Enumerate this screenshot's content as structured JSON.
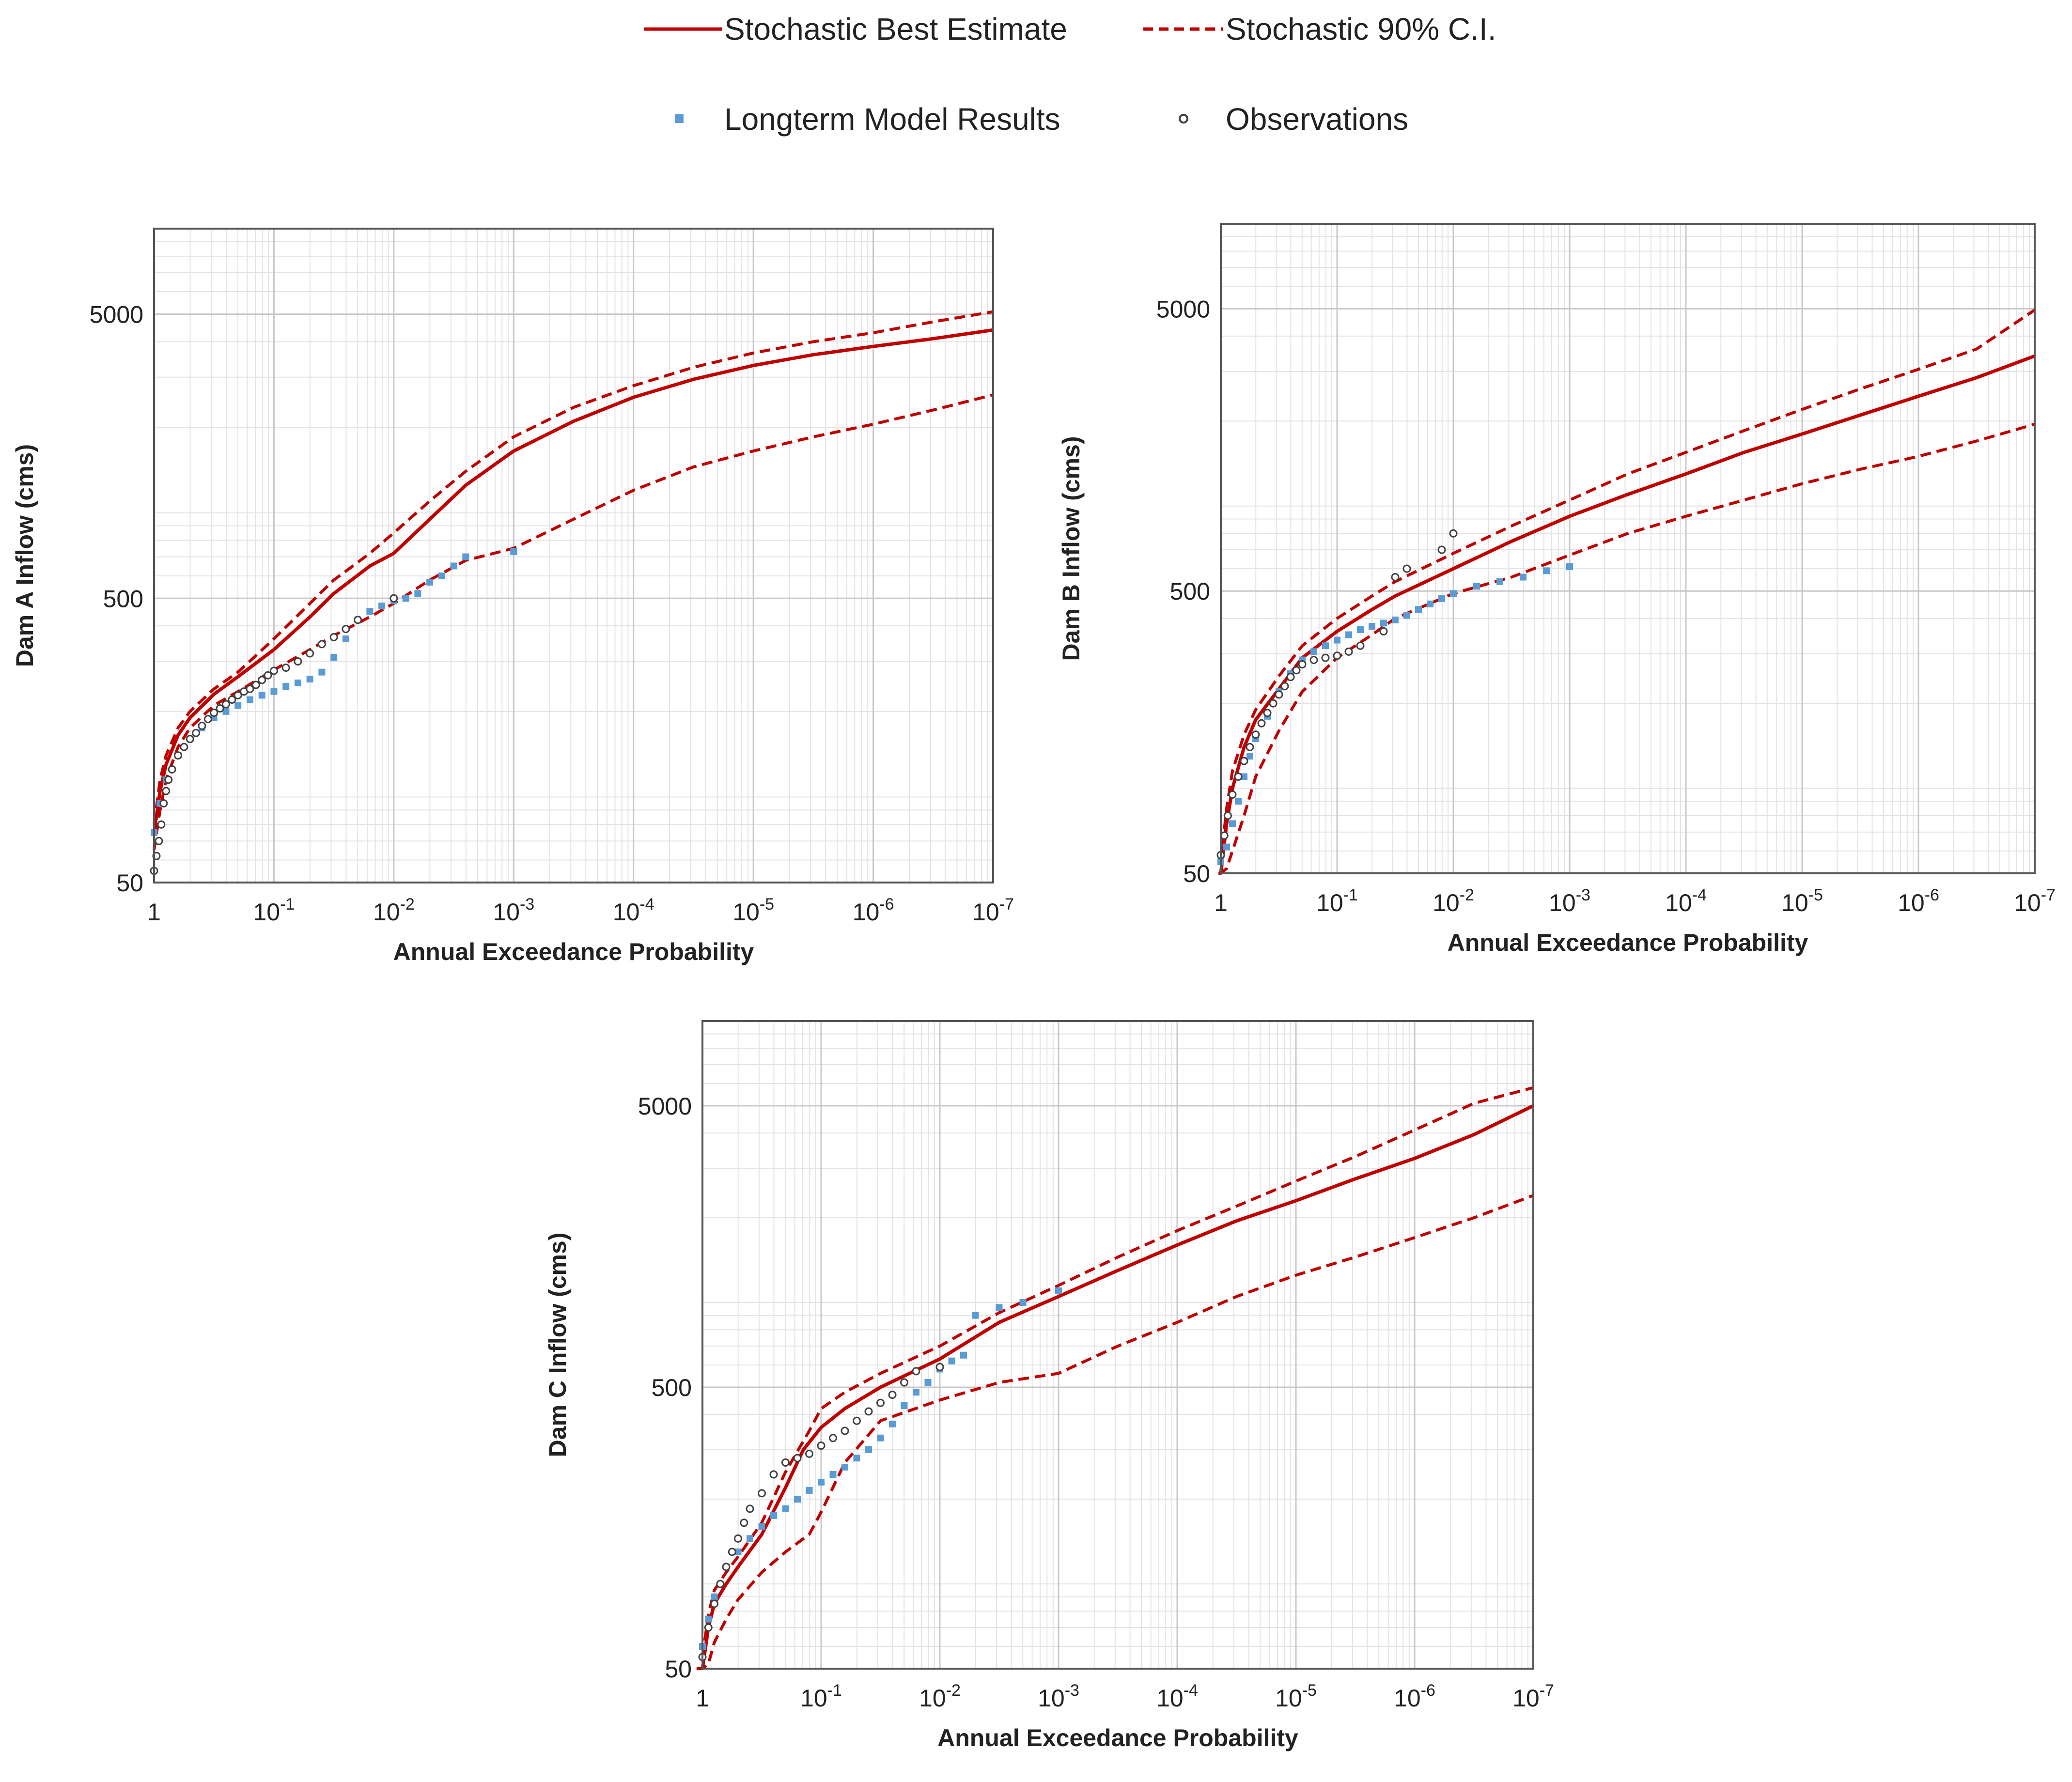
{
  "legend": [
    {
      "key": "best",
      "label": "Stochastic Best Estimate",
      "style": "solid",
      "color": "#c00000"
    },
    {
      "key": "ci",
      "label": "Stochastic 90% C.I.",
      "style": "dashed",
      "color": "#c00000"
    },
    {
      "key": "model",
      "label": "Longterm Model Results",
      "style": "square",
      "color": "#5b9bd5"
    },
    {
      "key": "obs",
      "label": "Observations",
      "style": "circle",
      "color": "#404040"
    }
  ],
  "chart_data": [
    {
      "id": "a",
      "type": "line",
      "xlabel": "Annual Exceedance Probability",
      "ylabel": "Dam A Inflow (cms)",
      "x_scale": "log-reversed",
      "xlim_exponent": [
        0,
        -7
      ],
      "x_ticks": [
        {
          "base": "1",
          "exp": ""
        },
        {
          "base": "10",
          "exp": "-1"
        },
        {
          "base": "10",
          "exp": "-2"
        },
        {
          "base": "10",
          "exp": "-3"
        },
        {
          "base": "10",
          "exp": "-4"
        },
        {
          "base": "10",
          "exp": "-5"
        },
        {
          "base": "10",
          "exp": "-6"
        },
        {
          "base": "10",
          "exp": "-7"
        }
      ],
      "y_scale": "log",
      "ylim": [
        50,
        10000
      ],
      "y_ticks": [
        {
          "value": 50,
          "label": "50"
        },
        {
          "value": 500,
          "label": "500"
        },
        {
          "value": 5000,
          "label": "5000"
        }
      ],
      "series": [
        {
          "name": "Stochastic Best Estimate",
          "style": "solid",
          "x": [
            0,
            -0.05,
            -0.1,
            -0.2,
            -0.3,
            -0.5,
            -0.7,
            -1,
            -1.3,
            -1.5,
            -1.8,
            -2,
            -2.3,
            -2.6,
            -3,
            -3.5,
            -4,
            -4.5,
            -5,
            -5.5,
            -6,
            -6.5,
            -7
          ],
          "y": [
            75,
            105,
            130,
            165,
            190,
            230,
            265,
            330,
            430,
            520,
            650,
            720,
            950,
            1250,
            1650,
            2100,
            2550,
            2950,
            3300,
            3600,
            3850,
            4100,
            4400
          ]
        },
        {
          "name": "Stochastic 90% C.I. upper",
          "style": "dashed",
          "x": [
            0,
            -0.05,
            -0.1,
            -0.2,
            -0.3,
            -0.5,
            -0.7,
            -1,
            -1.3,
            -1.5,
            -1.8,
            -2,
            -2.3,
            -2.6,
            -3,
            -3.5,
            -4,
            -4.5,
            -5,
            -5.5,
            -6,
            -6.5,
            -7
          ],
          "y": [
            80,
            115,
            140,
            175,
            200,
            240,
            275,
            360,
            480,
            580,
            720,
            850,
            1100,
            1400,
            1850,
            2350,
            2800,
            3250,
            3650,
            4000,
            4300,
            4700,
            5100
          ]
        },
        {
          "name": "Stochastic 90% C.I. lower",
          "style": "dashed",
          "x": [
            0,
            -0.05,
            -0.1,
            -0.2,
            -0.3,
            -0.5,
            -0.7,
            -1,
            -1.3,
            -1.5,
            -1.8,
            -2,
            -2.3,
            -2.6,
            -3,
            -3.5,
            -4,
            -4.5,
            -5,
            -5.5,
            -6,
            -6.5,
            -7
          ],
          "y": [
            65,
            90,
            115,
            150,
            175,
            210,
            235,
            280,
            330,
            370,
            430,
            480,
            580,
            680,
            750,
            950,
            1200,
            1450,
            1650,
            1850,
            2050,
            2300,
            2600
          ]
        },
        {
          "name": "Longterm Model Results",
          "style": "square",
          "x": [
            0,
            -0.05,
            -0.1,
            -0.2,
            -0.3,
            -0.4,
            -0.5,
            -0.6,
            -0.7,
            -0.8,
            -0.9,
            -1,
            -1.1,
            -1.2,
            -1.3,
            -1.4,
            -1.5,
            -1.6,
            -1.7,
            -1.8,
            -1.9,
            -2,
            -2.1,
            -2.2,
            -2.3,
            -2.4,
            -2.5,
            -2.6,
            -3
          ],
          "y": [
            75,
            95,
            115,
            140,
            160,
            175,
            190,
            200,
            210,
            220,
            228,
            235,
            245,
            252,
            260,
            275,
            310,
            360,
            420,
            450,
            470,
            490,
            500,
            520,
            570,
            600,
            650,
            700,
            730
          ]
        },
        {
          "name": "Observations",
          "style": "circle",
          "x": [
            0,
            -0.02,
            -0.04,
            -0.06,
            -0.08,
            -0.1,
            -0.12,
            -0.15,
            -0.2,
            -0.25,
            -0.3,
            -0.35,
            -0.4,
            -0.45,
            -0.5,
            -0.55,
            -0.6,
            -0.65,
            -0.7,
            -0.75,
            -0.8,
            -0.85,
            -0.9,
            -0.95,
            -1,
            -1.1,
            -1.2,
            -1.3,
            -1.4,
            -1.5,
            -1.6,
            -1.7,
            -2
          ],
          "y": [
            55,
            62,
            70,
            80,
            95,
            105,
            115,
            125,
            140,
            150,
            160,
            168,
            178,
            188,
            198,
            205,
            212,
            220,
            228,
            235,
            240,
            248,
            258,
            268,
            278,
            285,
            300,
            320,
            345,
            365,
            390,
            420,
            500
          ]
        }
      ]
    },
    {
      "id": "b",
      "type": "line",
      "xlabel": "Annual Exceedance Probability",
      "ylabel": "Dam B Inflow (cms)",
      "x_scale": "log-reversed",
      "xlim_exponent": [
        0,
        -7
      ],
      "x_ticks": [
        {
          "base": "1",
          "exp": ""
        },
        {
          "base": "10",
          "exp": "-1"
        },
        {
          "base": "10",
          "exp": "-2"
        },
        {
          "base": "10",
          "exp": "-3"
        },
        {
          "base": "10",
          "exp": "-4"
        },
        {
          "base": "10",
          "exp": "-5"
        },
        {
          "base": "10",
          "exp": "-6"
        },
        {
          "base": "10",
          "exp": "-7"
        }
      ],
      "y_scale": "log",
      "ylim": [
        50,
        10000
      ],
      "y_ticks": [
        {
          "value": 50,
          "label": "50"
        },
        {
          "value": 500,
          "label": "500"
        },
        {
          "value": 5000,
          "label": "5000"
        }
      ],
      "series": [
        {
          "name": "Stochastic Best Estimate",
          "style": "solid",
          "x": [
            0,
            -0.05,
            -0.1,
            -0.2,
            -0.3,
            -0.5,
            -0.7,
            -1,
            -1.3,
            -1.5,
            -2,
            -2.5,
            -3,
            -3.5,
            -4,
            -4.5,
            -5,
            -5.5,
            -6,
            -6.5,
            -7
          ],
          "y": [
            50,
            75,
            100,
            140,
            175,
            225,
            290,
            360,
            430,
            480,
            600,
            750,
            920,
            1100,
            1300,
            1550,
            1800,
            2100,
            2450,
            2850,
            3400
          ]
        },
        {
          "name": "Stochastic 90% C.I. upper",
          "style": "dashed",
          "x": [
            0,
            -0.05,
            -0.1,
            -0.2,
            -0.3,
            -0.5,
            -0.7,
            -1,
            -1.3,
            -1.5,
            -2,
            -2.5,
            -3,
            -3.5,
            -4,
            -4.5,
            -5,
            -5.5,
            -6,
            -6.5,
            -7
          ],
          "y": [
            55,
            85,
            115,
            155,
            190,
            250,
            320,
            400,
            480,
            540,
            680,
            850,
            1050,
            1300,
            1550,
            1850,
            2200,
            2600,
            3050,
            3600,
            4950
          ]
        },
        {
          "name": "Stochastic 90% C.I. lower",
          "style": "dashed",
          "x": [
            0.02,
            0,
            -0.05,
            -0.1,
            -0.2,
            -0.3,
            -0.5,
            -0.7,
            -1,
            -1.3,
            -1.5,
            -2,
            -2.5,
            -3,
            -3.5,
            -4,
            -4.5,
            -5,
            -5.5,
            -6,
            -6.5,
            -7
          ],
          "y": [
            50,
            50,
            52,
            60,
            80,
            110,
            160,
            220,
            290,
            350,
            400,
            490,
            560,
            670,
            800,
            920,
            1050,
            1200,
            1350,
            1500,
            1700,
            1950
          ]
        },
        {
          "name": "Longterm Model Results",
          "style": "square",
          "x": [
            0,
            -0.05,
            -0.1,
            -0.15,
            -0.2,
            -0.25,
            -0.3,
            -0.4,
            -0.5,
            -0.6,
            -0.7,
            -0.8,
            -0.9,
            -1,
            -1.1,
            -1.2,
            -1.3,
            -1.4,
            -1.5,
            -1.6,
            -1.7,
            -1.8,
            -1.9,
            -2,
            -2.2,
            -2.4,
            -2.6,
            -2.8,
            -3
          ],
          "y": [
            55,
            62,
            75,
            90,
            110,
            130,
            150,
            180,
            220,
            255,
            285,
            305,
            320,
            335,
            350,
            365,
            375,
            385,
            395,
            410,
            430,
            450,
            470,
            490,
            520,
            540,
            560,
            590,
            610
          ]
        },
        {
          "name": "Observations",
          "style": "circle",
          "x": [
            0,
            -0.03,
            -0.06,
            -0.1,
            -0.15,
            -0.2,
            -0.25,
            -0.3,
            -0.35,
            -0.4,
            -0.45,
            -0.5,
            -0.55,
            -0.6,
            -0.65,
            -0.7,
            -0.8,
            -0.9,
            -1,
            -1.1,
            -1.2,
            -1.4,
            -1.5,
            -1.6,
            -1.9,
            -2
          ],
          "y": [
            58,
            68,
            80,
            95,
            110,
            125,
            140,
            155,
            170,
            185,
            200,
            215,
            230,
            248,
            262,
            275,
            285,
            290,
            295,
            305,
            320,
            360,
            560,
            600,
            700,
            800
          ]
        }
      ]
    },
    {
      "id": "c",
      "type": "line",
      "xlabel": "Annual Exceedance Probability",
      "ylabel": "Dam C Inflow (cms)",
      "x_scale": "log-reversed",
      "xlim_exponent": [
        0,
        -7
      ],
      "x_ticks": [
        {
          "base": "1",
          "exp": ""
        },
        {
          "base": "10",
          "exp": "-1"
        },
        {
          "base": "10",
          "exp": "-2"
        },
        {
          "base": "10",
          "exp": "-3"
        },
        {
          "base": "10",
          "exp": "-4"
        },
        {
          "base": "10",
          "exp": "-5"
        },
        {
          "base": "10",
          "exp": "-6"
        },
        {
          "base": "10",
          "exp": "-7"
        }
      ],
      "y_scale": "log",
      "ylim": [
        50,
        10000
      ],
      "y_ticks": [
        {
          "value": 50,
          "label": "50"
        },
        {
          "value": 500,
          "label": "500"
        },
        {
          "value": 5000,
          "label": "5000"
        }
      ],
      "series": [
        {
          "name": "Stochastic Best Estimate",
          "style": "solid",
          "x": [
            0,
            -0.05,
            -0.1,
            -0.2,
            -0.3,
            -0.5,
            -0.7,
            -0.85,
            -1,
            -1.2,
            -1.5,
            -2,
            -2.5,
            -3,
            -3.5,
            -4,
            -4.5,
            -5,
            -5.5,
            -6,
            -6.5,
            -7
          ],
          "y": [
            50,
            70,
            85,
            100,
            115,
            150,
            220,
            300,
            360,
            420,
            500,
            630,
            850,
            1050,
            1300,
            1600,
            1950,
            2300,
            2750,
            3250,
            3950,
            5000
          ]
        },
        {
          "name": "Stochastic 90% C.I. upper",
          "style": "dashed",
          "x": [
            0,
            -0.05,
            -0.1,
            -0.2,
            -0.3,
            -0.5,
            -0.7,
            -0.9,
            -1,
            -1.2,
            -1.5,
            -2,
            -2.5,
            -3,
            -3.5,
            -4,
            -4.5,
            -5,
            -5.5,
            -6,
            -6.5,
            -7
          ],
          "y": [
            55,
            78,
            95,
            110,
            125,
            165,
            250,
            350,
            420,
            480,
            560,
            700,
            920,
            1150,
            1450,
            1800,
            2200,
            2700,
            3300,
            4100,
            5100,
            5800
          ]
        },
        {
          "name": "Stochastic 90% C.I. lower",
          "style": "dashed",
          "x": [
            0.05,
            0,
            -0.05,
            -0.1,
            -0.2,
            -0.3,
            -0.5,
            -0.7,
            -0.9,
            -1,
            -1.2,
            -1.5,
            -2,
            -2.5,
            -3,
            -3.5,
            -4,
            -4.5,
            -5,
            -5.5,
            -6,
            -6.5,
            -7
          ],
          "y": [
            50,
            50,
            52,
            62,
            75,
            88,
            110,
            130,
            150,
            180,
            270,
            380,
            450,
            520,
            560,
            700,
            850,
            1050,
            1250,
            1450,
            1700,
            2000,
            2400
          ]
        },
        {
          "name": "Longterm Model Results",
          "style": "square",
          "x": [
            0,
            -0.05,
            -0.1,
            -0.2,
            -0.3,
            -0.4,
            -0.5,
            -0.6,
            -0.7,
            -0.8,
            -0.9,
            -1,
            -1.1,
            -1.2,
            -1.3,
            -1.4,
            -1.5,
            -1.6,
            -1.7,
            -1.8,
            -1.9,
            -2,
            -2.1,
            -2.2,
            -2.3,
            -2.5,
            -2.7,
            -3
          ],
          "y": [
            60,
            75,
            90,
            115,
            130,
            145,
            160,
            175,
            185,
            200,
            215,
            230,
            245,
            260,
            280,
            300,
            330,
            370,
            430,
            480,
            520,
            580,
            620,
            650,
            900,
            960,
            1000,
            1100
          ]
        },
        {
          "name": "Observations",
          "style": "circle",
          "x": [
            0,
            -0.05,
            -0.1,
            -0.15,
            -0.2,
            -0.25,
            -0.3,
            -0.35,
            -0.4,
            -0.5,
            -0.6,
            -0.7,
            -0.8,
            -0.9,
            -1,
            -1.1,
            -1.2,
            -1.3,
            -1.4,
            -1.5,
            -1.6,
            -1.7,
            -1.8,
            -2
          ],
          "y": [
            55,
            70,
            85,
            100,
            115,
            130,
            145,
            165,
            185,
            210,
            245,
            270,
            280,
            290,
            310,
            330,
            350,
            380,
            410,
            440,
            470,
            520,
            570,
            590
          ]
        }
      ]
    }
  ]
}
